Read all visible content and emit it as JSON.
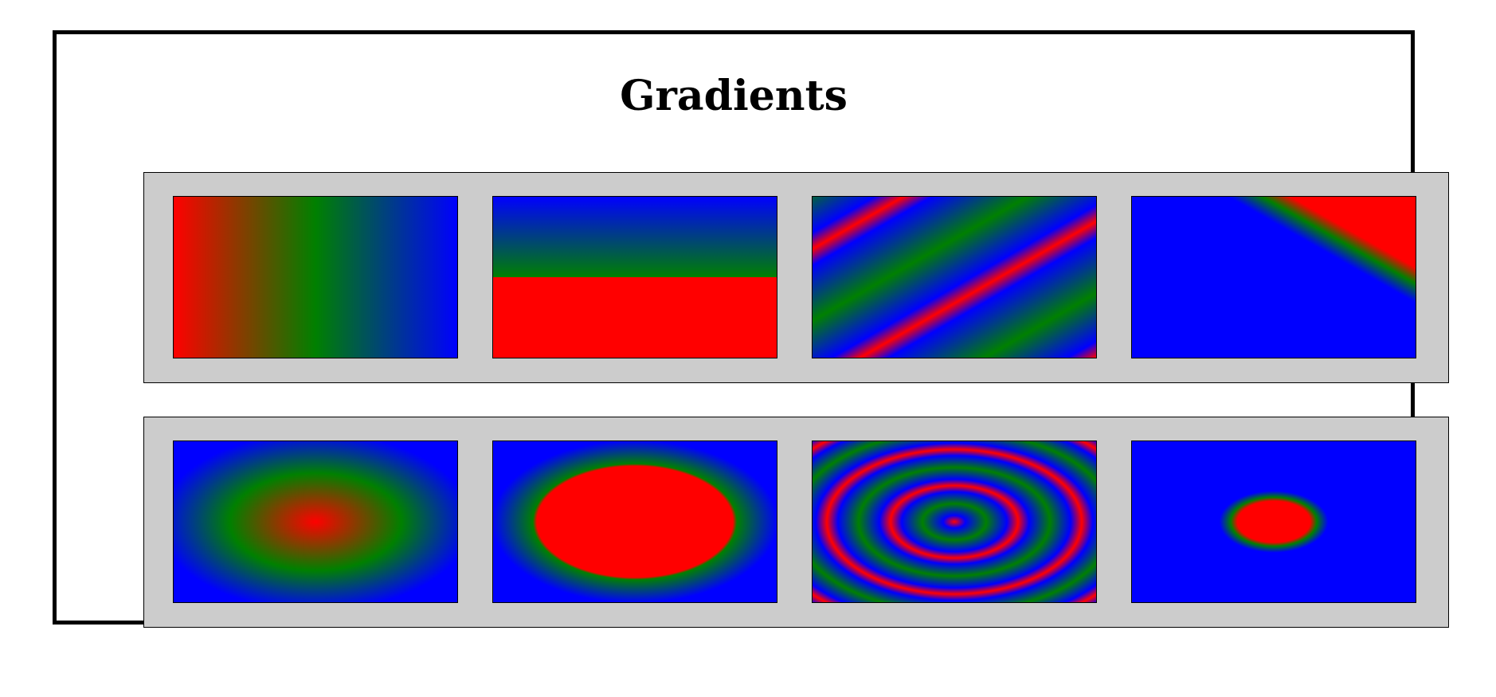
{
  "page": {
    "title": "Gradients"
  },
  "rows": [
    {
      "name": "linear-gradients",
      "tiles": [
        {
          "name": "linear-horizontal",
          "colors": [
            "#ff0000",
            "#008000",
            "#0000ff"
          ]
        },
        {
          "name": "linear-vertical-hard-stop",
          "colors": [
            "#0000ff",
            "#008000",
            "#ff0000"
          ]
        },
        {
          "name": "linear-diagonal-repeating",
          "colors": [
            "#ff0000",
            "#0000ff",
            "#008000"
          ]
        },
        {
          "name": "linear-corner",
          "colors": [
            "#ff0000",
            "#008000",
            "#0000ff"
          ]
        }
      ]
    },
    {
      "name": "radial-gradients",
      "tiles": [
        {
          "name": "radial-soft",
          "colors": [
            "#ff0000",
            "#008000",
            "#0000ff"
          ]
        },
        {
          "name": "radial-large-solid-center",
          "colors": [
            "#ff0000",
            "#008000",
            "#0000ff"
          ]
        },
        {
          "name": "radial-repeating-rings",
          "colors": [
            "#ff0000",
            "#0000ff",
            "#008000"
          ]
        },
        {
          "name": "radial-small-solid-center",
          "colors": [
            "#ff0000",
            "#008000",
            "#0000ff"
          ]
        }
      ]
    }
  ],
  "colors": {
    "panel_background": "#cccccc",
    "frame_border": "#000000",
    "page_background": "#ffffff"
  }
}
